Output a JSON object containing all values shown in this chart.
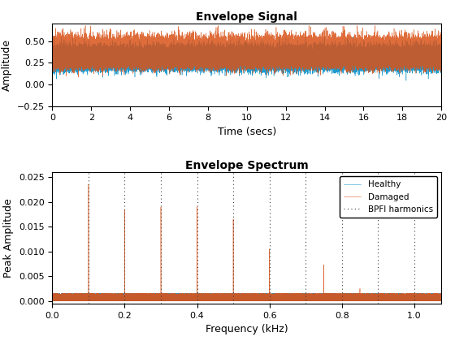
{
  "title1": "Envelope Signal",
  "xlabel1": "Time (secs)",
  "ylabel1": "Amplitude",
  "ylim1": [
    -0.25,
    0.7
  ],
  "xlim1": [
    0,
    20
  ],
  "xticks1": [
    0,
    2,
    4,
    6,
    8,
    10,
    12,
    14,
    16,
    18,
    20
  ],
  "title2": "Envelope Spectrum",
  "xlabel2": "Frequency (kHz)",
  "ylabel2": "Peak Amplitude",
  "ylim2": [
    -0.0005,
    0.026
  ],
  "xlim2": [
    0,
    1.075
  ],
  "yticks2": [
    0,
    0.005,
    0.01,
    0.015,
    0.02,
    0.025
  ],
  "bpfi_harmonics": [
    0.1,
    0.2,
    0.3,
    0.4,
    0.5,
    0.6,
    0.7,
    0.8,
    0.9,
    1.0
  ],
  "damaged_peaks_freq": [
    0.1,
    0.2,
    0.3,
    0.4,
    0.5,
    0.6,
    0.75,
    0.85
  ],
  "damaged_peaks_amp": [
    0.0235,
    0.0183,
    0.019,
    0.019,
    0.0165,
    0.0105,
    0.0073,
    0.0025
  ],
  "color_healthy": "#1f9bcf",
  "color_damaged": "#d95319",
  "color_bpfi": "#404040",
  "noise_floor": 0.00065,
  "signal_mean": 0.27,
  "signal_amplitude": 0.09,
  "legend_loc": "upper right",
  "figsize": [
    5.6,
    4.2
  ],
  "dpi": 100
}
